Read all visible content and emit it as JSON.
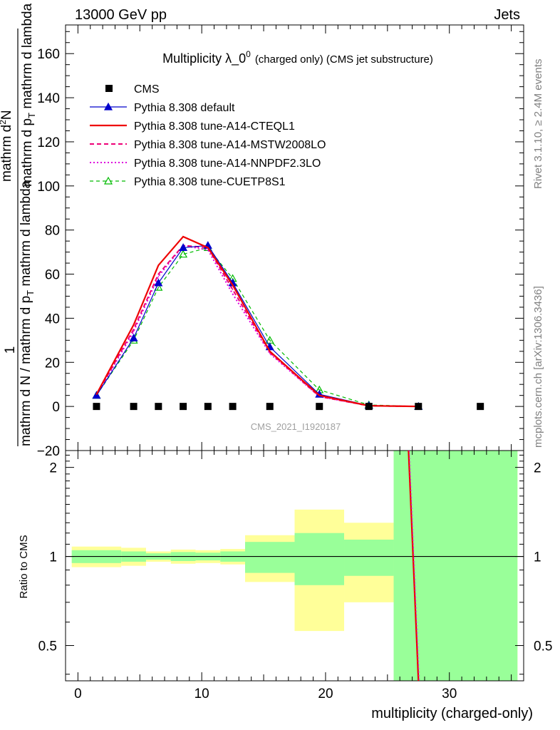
{
  "header": {
    "left": "13000 GeV pp",
    "right": "Jets"
  },
  "side_labels": {
    "rivet": "Rivet 3.1.10, ≥ 2.4M events",
    "mcplots": "mcplots.cern.ch [arXiv:1306.3436]"
  },
  "watermark": "CMS_2021_I1920187",
  "colors": {
    "cms": "#000000",
    "default": "#0000cc",
    "cteql1": "#ee0000",
    "mstw": "#ee0077",
    "nnpdf": "#dd00dd",
    "cuetp8s1": "#00bb00",
    "band_inner": "#99ff99",
    "band_outer": "#ffff99"
  },
  "chart_data": [
    {
      "type": "line",
      "title_main": "Multiplicity λ_0",
      "title_sup": "0",
      "title_suffix": "(charged only) (CMS jet substructure)",
      "ylabel_parts": {
        "one": "1",
        "denominator": "mathrm d N / mathrm d p",
        "den_sub": "T",
        "den_rest": " mathrm d lambda",
        "numerator": "mathrm d",
        "num_sup": "2",
        "num_rest": "N",
        "num_den": "mathrm d p",
        "num_den_sub": "T",
        "num_den_rest": " mathrm d lambda"
      },
      "xlim": [
        -1,
        36
      ],
      "ylim": [
        -20,
        173
      ],
      "yticks": [
        -20,
        0,
        20,
        40,
        60,
        80,
        100,
        120,
        140,
        160
      ],
      "ytick_labels": [
        "−20",
        "0",
        "20",
        "40",
        "60",
        "80",
        "100",
        "120",
        "140",
        "160"
      ],
      "legend_position": "top-left",
      "series": [
        {
          "key": "cms",
          "name": "CMS",
          "x": [
            1.5,
            4.5,
            6.5,
            8.5,
            10.5,
            12.5,
            15.5,
            19.5,
            23.5,
            27.5,
            32.5
          ],
          "y": [
            0,
            0,
            0,
            0,
            0,
            0,
            0,
            0,
            0,
            0,
            0
          ]
        },
        {
          "key": "default",
          "name": "Pythia 8.308 default",
          "x": [
            1.5,
            4.5,
            6.5,
            8.5,
            10.5,
            12.5,
            15.5,
            19.5,
            23.5,
            27.5
          ],
          "y": [
            5,
            31,
            56,
            72,
            73,
            56,
            27,
            5.5,
            0.4,
            0
          ]
        },
        {
          "key": "cteql1",
          "name": "Pythia 8.308 tune-A14-CTEQL1",
          "x": [
            1.5,
            4.5,
            6.5,
            8.5,
            10.5,
            12.5,
            15.5,
            19.5,
            23.5,
            27.5
          ],
          "y": [
            5.5,
            37,
            64,
            77,
            72,
            55,
            25,
            5,
            0.3,
            0
          ]
        },
        {
          "key": "mstw",
          "name": "Pythia 8.308 tune-A14-MSTW2008LO",
          "x": [
            1.5,
            4.5,
            6.5,
            8.5,
            10.5,
            12.5,
            15.5,
            19.5,
            23.5,
            27.5
          ],
          "y": [
            5.2,
            35,
            60,
            73,
            72,
            53,
            24.5,
            4.5,
            0.3,
            0
          ]
        },
        {
          "key": "nnpdf",
          "name": "Pythia 8.308 tune-A14-NNPDF2.3LO",
          "x": [
            1.5,
            4.5,
            6.5,
            8.5,
            10.5,
            12.5,
            15.5,
            19.5,
            23.5,
            27.5
          ],
          "y": [
            5,
            34,
            59,
            73,
            71,
            51,
            24,
            4.5,
            0.3,
            0
          ]
        },
        {
          "key": "cuetp8s1",
          "name": "Pythia 8.308 tune-CUETP8S1",
          "x": [
            1.5,
            4.5,
            6.5,
            8.5,
            10.5,
            12.5,
            15.5,
            19.5,
            23.5,
            27.5
          ],
          "y": [
            5,
            30,
            54,
            69,
            72,
            58,
            30,
            7.5,
            0.7,
            0
          ]
        }
      ]
    },
    {
      "type": "area",
      "ylabel": "Ratio to CMS",
      "xlabel": "multiplicity (charged-only)",
      "xlim": [
        -1,
        36
      ],
      "ylim": [
        0.38,
        2.28
      ],
      "xticks": [
        0,
        10,
        20,
        30
      ],
      "xtick_labels": [
        "0",
        "10",
        "20",
        "30"
      ],
      "yticks": [
        0.5,
        1,
        2
      ],
      "ytick_labels": [
        "0.5",
        "1",
        "2"
      ],
      "bins": [
        {
          "x0": -0.5,
          "x1": 3.5,
          "inner": [
            0.95,
            1.05
          ],
          "outer": [
            0.92,
            1.08
          ]
        },
        {
          "x0": 3.5,
          "x1": 5.5,
          "inner": [
            0.96,
            1.04
          ],
          "outer": [
            0.93,
            1.07
          ]
        },
        {
          "x0": 5.5,
          "x1": 7.5,
          "inner": [
            0.975,
            1.025
          ],
          "outer": [
            0.96,
            1.04
          ]
        },
        {
          "x0": 7.5,
          "x1": 9.5,
          "inner": [
            0.965,
            1.035
          ],
          "outer": [
            0.945,
            1.055
          ]
        },
        {
          "x0": 9.5,
          "x1": 11.5,
          "inner": [
            0.97,
            1.03
          ],
          "outer": [
            0.95,
            1.05
          ]
        },
        {
          "x0": 11.5,
          "x1": 13.5,
          "inner": [
            0.96,
            1.04
          ],
          "outer": [
            0.94,
            1.06
          ]
        },
        {
          "x0": 13.5,
          "x1": 17.5,
          "inner": [
            0.88,
            1.12
          ],
          "outer": [
            0.82,
            1.18
          ]
        },
        {
          "x0": 17.5,
          "x1": 21.5,
          "inner": [
            0.8,
            1.2
          ],
          "outer": [
            0.56,
            1.44
          ]
        },
        {
          "x0": 21.5,
          "x1": 25.5,
          "inner": [
            0.86,
            1.14
          ],
          "outer": [
            0.7,
            1.3
          ]
        },
        {
          "x0": 25.5,
          "x1": 35.5,
          "inner": [
            0.38,
            2.28
          ],
          "outer": [
            0.38,
            2.28
          ]
        }
      ],
      "ratio_line": {
        "x": [
          26.7,
          27.5
        ],
        "y": [
          2.28,
          0.38
        ]
      }
    }
  ]
}
